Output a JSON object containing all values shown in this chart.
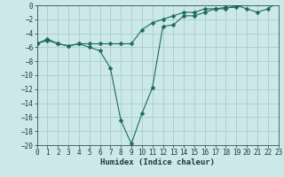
{
  "xlabel": "Humidex (Indice chaleur)",
  "bg_color": "#cce8e8",
  "grid_color": "#aacccc",
  "line_color": "#1a6b5a",
  "x_line1": [
    0,
    1,
    2,
    3,
    4,
    5,
    6,
    7,
    8,
    9,
    10,
    11,
    12,
    13,
    14,
    15,
    16,
    17,
    18,
    19,
    20,
    21,
    22,
    23
  ],
  "y_line1": [
    -5.5,
    -5.0,
    -5.5,
    -5.8,
    -5.5,
    -5.5,
    -5.5,
    -5.5,
    -5.5,
    -5.5,
    -3.5,
    -2.5,
    -2.0,
    -1.5,
    -1.0,
    -1.0,
    -0.5,
    -0.5,
    -0.3,
    -0.3,
    0.3,
    0.3,
    0.3,
    0.5
  ],
  "x_line2": [
    0,
    1,
    2,
    3,
    4,
    5,
    6,
    7,
    8,
    9,
    10,
    11,
    12,
    13,
    14,
    15,
    16,
    17,
    18,
    19,
    20,
    21,
    22,
    23
  ],
  "y_line2": [
    -5.5,
    -4.8,
    -5.5,
    -5.8,
    -5.5,
    -6.0,
    -6.5,
    -9.0,
    -16.5,
    -19.8,
    -15.5,
    -11.8,
    -3.0,
    -2.8,
    -1.5,
    -1.5,
    -1.0,
    -0.5,
    -0.5,
    0.0,
    -0.5,
    -1.0,
    -0.5,
    0.5
  ],
  "ylim": [
    -20,
    0
  ],
  "xlim": [
    0,
    23
  ],
  "yticks": [
    0,
    -2,
    -4,
    -6,
    -8,
    -10,
    -12,
    -14,
    -16,
    -18,
    -20
  ],
  "xticks": [
    0,
    1,
    2,
    3,
    4,
    5,
    6,
    7,
    8,
    9,
    10,
    11,
    12,
    13,
    14,
    15,
    16,
    17,
    18,
    19,
    20,
    21,
    22,
    23
  ],
  "font_color": "#1a3a3a",
  "xlabel_fontsize": 6.5,
  "tick_fontsize": 5.5,
  "marker_size": 2.5
}
